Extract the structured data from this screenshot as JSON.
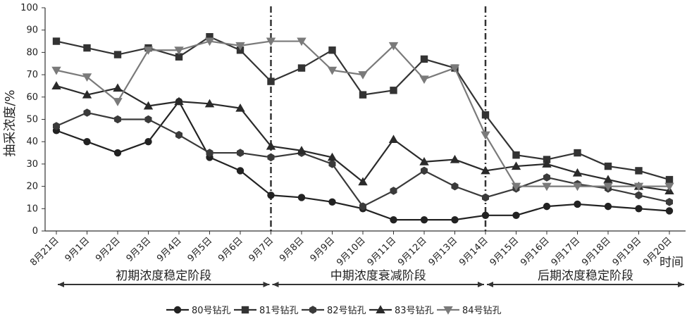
{
  "chart_data": {
    "type": "line",
    "title": "",
    "ylabel": "抽采浓度/%",
    "xlabel": "时间",
    "ylim": [
      0,
      100
    ],
    "yticks": [
      0,
      10,
      20,
      30,
      40,
      50,
      60,
      70,
      80,
      90,
      100
    ],
    "categories": [
      "8月21日",
      "9月1日",
      "9月2日",
      "9月3日",
      "9月4日",
      "9月5日",
      "9月6日",
      "9月7日",
      "9月8日",
      "9月9日",
      "9月10日",
      "9月11日",
      "9月12日",
      "9月13日",
      "9月14日",
      "9月15日",
      "9月16日",
      "9月17日",
      "9月18日",
      "9月19日",
      "9月20日"
    ],
    "grid": false,
    "legend_position": "bottom",
    "stage_dividers_after_index": [
      7,
      14
    ],
    "stages": [
      {
        "label": "初期浓度稳定阶段",
        "from": 0,
        "to": 7
      },
      {
        "label": "中期浓度衰减阶段",
        "from": 7,
        "to": 14
      },
      {
        "label": "后期浓度稳定阶段",
        "from": 14,
        "to": 21
      }
    ],
    "series": [
      {
        "name": "80号钻孔",
        "marker": "circle",
        "color": "#222222",
        "values": [
          45,
          40,
          35,
          40,
          58,
          33,
          27,
          16,
          15,
          13,
          10,
          5,
          5,
          5,
          7,
          7,
          11,
          12,
          11,
          10,
          9
        ]
      },
      {
        "name": "81号钻孔",
        "marker": "square",
        "color": "#333333",
        "values": [
          85,
          82,
          79,
          82,
          78,
          87,
          81,
          67,
          73,
          81,
          61,
          63,
          77,
          73,
          52,
          34,
          32,
          35,
          29,
          27,
          23
        ]
      },
      {
        "name": "82号钻孔",
        "marker": "hexagon",
        "color": "#3a3a3a",
        "values": [
          47,
          53,
          50,
          50,
          43,
          35,
          35,
          33,
          35,
          30,
          11,
          18,
          27,
          20,
          15,
          19,
          24,
          21,
          19,
          16,
          13
        ]
      },
      {
        "name": "83号钻孔",
        "marker": "triangle-up",
        "color": "#2a2a2a",
        "values": [
          65,
          61,
          64,
          56,
          58,
          57,
          55,
          38,
          36,
          33,
          22,
          41,
          31,
          32,
          27,
          29,
          30,
          26,
          23,
          20,
          18
        ]
      },
      {
        "name": "84号钻孔",
        "marker": "triangle-down",
        "color": "#7a7a7a",
        "values": [
          72,
          69,
          58,
          81,
          81,
          85,
          83,
          85,
          85,
          72,
          70,
          83,
          68,
          73,
          43,
          20,
          20,
          20,
          20,
          20,
          20
        ]
      }
    ]
  }
}
